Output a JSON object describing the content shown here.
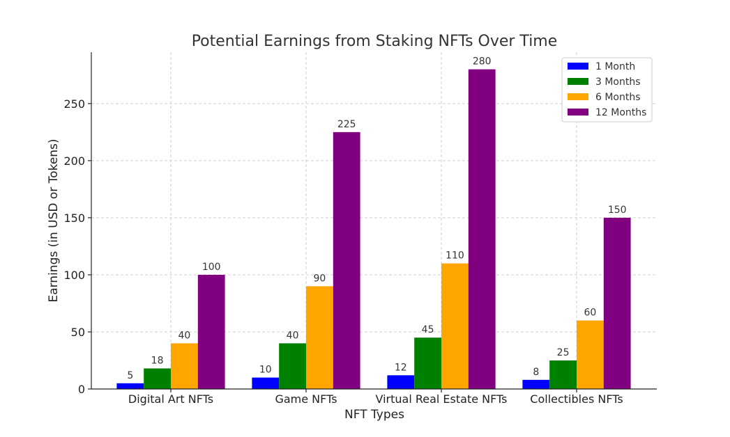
{
  "chart_data": {
    "type": "bar",
    "title": "Potential Earnings from Staking NFTs Over Time",
    "xlabel": "NFT Types",
    "ylabel": "Earnings (in USD or Tokens)",
    "categories": [
      "Digital Art NFTs",
      "Game NFTs",
      "Virtual Real Estate NFTs",
      "Collectibles NFTs"
    ],
    "series": [
      {
        "name": "1 Month",
        "color": "#0000ff",
        "values": [
          5,
          10,
          12,
          8
        ]
      },
      {
        "name": "3 Months",
        "color": "#008000",
        "values": [
          18,
          40,
          45,
          25
        ]
      },
      {
        "name": "6 Months",
        "color": "#ffa500",
        "values": [
          40,
          90,
          110,
          60
        ]
      },
      {
        "name": "12 Months",
        "color": "#800080",
        "values": [
          100,
          225,
          280,
          150
        ]
      }
    ],
    "ylim": [
      0,
      295
    ],
    "yticks": [
      0,
      50,
      100,
      150,
      200,
      250
    ],
    "grid": true,
    "legend_position": "top-right"
  }
}
